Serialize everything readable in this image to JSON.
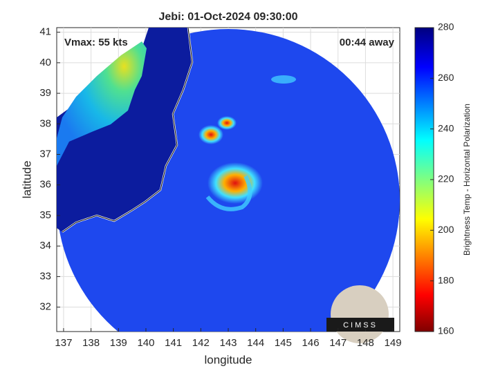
{
  "chart_data": {
    "type": "map",
    "title": "Jebi: 01-Oct-2024 09:30:00",
    "xlabel": "longitude",
    "ylabel": "latitude",
    "xlim": [
      136.75,
      149.25
    ],
    "xticks": [
      137,
      138,
      139,
      140,
      141,
      142,
      143,
      144,
      145,
      146,
      147,
      148,
      149
    ],
    "ylim": [
      31.2,
      41.15
    ],
    "yticks": [
      32,
      33,
      34,
      35,
      36,
      37,
      38,
      39,
      40,
      41
    ],
    "grid": true,
    "annotations": [
      "Vmax: 55 kts",
      "00:44 away"
    ],
    "logo": "CIMSS",
    "colorbar": {
      "label": "Brightness Temp - Horizontal Polarization",
      "lim": [
        160,
        280
      ],
      "ticks": [
        160,
        180,
        200,
        220,
        240,
        260,
        280
      ]
    }
  }
}
